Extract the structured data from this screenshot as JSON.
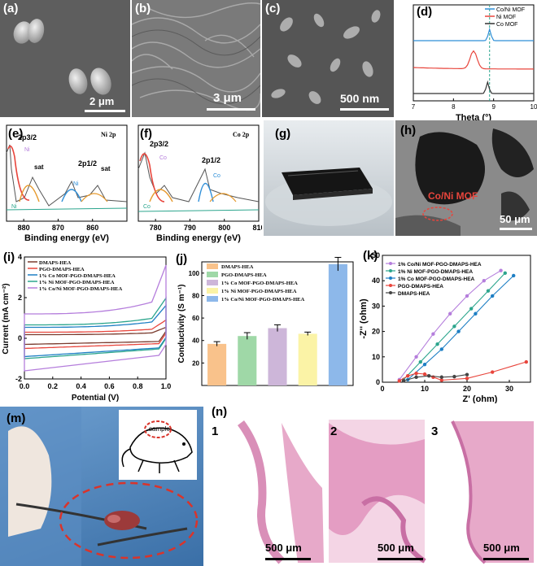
{
  "panels": {
    "a": {
      "label": "(a)",
      "scale": "2 μm"
    },
    "b": {
      "label": "(b)",
      "scale": "3 μm"
    },
    "c": {
      "label": "(c)",
      "scale": "500 nm"
    },
    "d": {
      "label": "(d)"
    },
    "e": {
      "label": "(e)",
      "title": "Ni 2p",
      "p32": "2p3/2",
      "p12": "2p1/2",
      "sat1": "sat",
      "sat2": "sat",
      "peak1": "Ni",
      "peak2": "Ni",
      "peak3": "Ni"
    },
    "f": {
      "label": "(f)",
      "title": "Co 2p",
      "p32": "2p3/2",
      "p12": "2p1/2",
      "peak1": "Co",
      "peak2": "Co",
      "peak3": "Co"
    },
    "g": {
      "label": "(g)"
    },
    "h": {
      "label": "(h)",
      "annotation": "Co/Ni MOF",
      "scale": "50 μm"
    },
    "i": {
      "label": "(i)"
    },
    "j": {
      "label": "(j)"
    },
    "k": {
      "label": "(k)"
    },
    "m": {
      "label": "(m)",
      "mouse_text": "sample"
    },
    "n": {
      "label": "(n)",
      "sub1": "1",
      "sub2": "2",
      "sub3": "3",
      "scale1": "500 μm",
      "scale2": "500 μm",
      "scale3": "500 μm"
    }
  },
  "colors": {
    "blue": "#2f8fd8",
    "red": "#e8453c",
    "black": "#333333",
    "sem_light": "#9a9a9a",
    "sem_dark": "#4a4a4a",
    "tissue": "#e7a9c9"
  },
  "chart_data": [
    {
      "id": "d",
      "type": "line",
      "xlabel": "Theta (°)",
      "ylabel": "",
      "xlim": [
        7,
        10
      ],
      "xticks": [
        "7",
        "8",
        "9",
        "10"
      ],
      "series": [
        {
          "name": "Co/Ni MOF",
          "color": "#2f8fd8",
          "peak_x": 8.9
        },
        {
          "name": "Ni MOF",
          "color": "#e8453c",
          "peak_x": 8.5
        },
        {
          "name": "Co MOF",
          "color": "#333333",
          "peak_x": 8.85
        }
      ],
      "reference_line_x": 8.9
    },
    {
      "id": "e",
      "type": "line",
      "xlabel": "Binding energy (eV)",
      "xlim": [
        885,
        850
      ],
      "xticks": [
        "860",
        "870",
        "880"
      ]
    },
    {
      "id": "f",
      "type": "line",
      "xlabel": "Binding energy (eV)",
      "xlim": [
        775,
        810
      ],
      "xticks": [
        "780",
        "790",
        "800",
        "810"
      ]
    },
    {
      "id": "i",
      "type": "line",
      "xlabel": "Potential (V)",
      "ylabel": "Current (mA cm⁻²)",
      "xlim": [
        0.0,
        1.0
      ],
      "ylim": [
        -2,
        4
      ],
      "xticks": [
        "0.0",
        "0.2",
        "0.4",
        "0.6",
        "0.8",
        "1.0"
      ],
      "yticks": [
        "-2",
        "0",
        "2",
        "4"
      ],
      "series": [
        {
          "name": "DMAPS-HEA",
          "color": "#7a3b2e",
          "upper": 0.3,
          "lower": -0.3
        },
        {
          "name": "PGO-DMAPS-HEA",
          "color": "#e8453c",
          "upper": 0.5,
          "lower": -0.5
        },
        {
          "name": "1% Co MOF-PGO-DMAPS-HEA",
          "color": "#1e7fc4",
          "upper": 0.9,
          "lower": -0.9
        },
        {
          "name": "1% Ni MOF-PGO-DMAPS-HEA",
          "color": "#2ca58d",
          "upper": 1.1,
          "lower": -1.0
        },
        {
          "name": "1% Co/Ni MOF-PGO-DMAPS-HEA",
          "color": "#b57edc",
          "upper": 2.0,
          "lower": -1.6
        }
      ]
    },
    {
      "id": "j",
      "type": "bar",
      "ylabel": "Conductivity (S m⁻¹)",
      "ylim": [
        0,
        110
      ],
      "yticks": [
        "20",
        "40",
        "60",
        "80",
        "100"
      ],
      "categories": [
        "DMAPS-HEA",
        "PGO-DMAPS-HEA",
        "1% Co MOF-PGO-DMAPS-HEA",
        "1% Ni MOF-PGO-DMAPS-HEA",
        "1% Co/Ni MOF-PGO-DMAPS-HEA"
      ],
      "values": [
        37,
        44,
        51,
        46,
        108
      ],
      "errors": [
        2,
        3,
        3,
        1.5,
        6
      ],
      "colors": [
        "#f9c28b",
        "#9fd8a7",
        "#cdb6d9",
        "#fbf3a6",
        "#8db8ea"
      ]
    },
    {
      "id": "k",
      "type": "scatter",
      "xlabel": "Z' (ohm)",
      "ylabel": "-Z'' (ohm)",
      "xlim": [
        0,
        35
      ],
      "ylim": [
        0,
        50
      ],
      "xticks": [
        "0",
        "10",
        "20",
        "30"
      ],
      "yticks": [
        "0",
        "10",
        "20",
        "30",
        "40",
        "50"
      ],
      "series": [
        {
          "name": "1% Co/Ni MOF-PGO-DMAPS-HEA",
          "color": "#b57edc",
          "x": [
            4,
            8,
            12,
            16,
            20,
            24,
            28
          ],
          "y": [
            1,
            10,
            19,
            27,
            34,
            40,
            44
          ]
        },
        {
          "name": "1% Ni MOF-PGO-DMAPS-HEA",
          "color": "#2ca58d",
          "x": [
            5,
            9,
            13,
            17,
            21,
            25,
            29
          ],
          "y": [
            1,
            8,
            15,
            22,
            29,
            36,
            43
          ]
        },
        {
          "name": "1% Co MOF-PGO-DMAPS-HEA",
          "color": "#1e7fc4",
          "x": [
            6,
            10,
            14,
            18,
            22,
            26,
            31
          ],
          "y": [
            1,
            7,
            13,
            20,
            27,
            34,
            42
          ]
        },
        {
          "name": "PGO-DMAPS-HEA",
          "color": "#e8453c",
          "x": [
            4,
            6,
            8,
            10,
            12,
            14,
            20,
            26,
            34
          ],
          "y": [
            0.5,
            2.5,
            3.5,
            3.2,
            2,
            0.8,
            1.5,
            4,
            8
          ]
        },
        {
          "name": "DMAPS-HEA",
          "color": "#444444",
          "x": [
            5,
            8,
            11,
            14,
            17,
            20
          ],
          "y": [
            0.5,
            2,
            2.5,
            2,
            2.2,
            3
          ]
        }
      ]
    }
  ]
}
